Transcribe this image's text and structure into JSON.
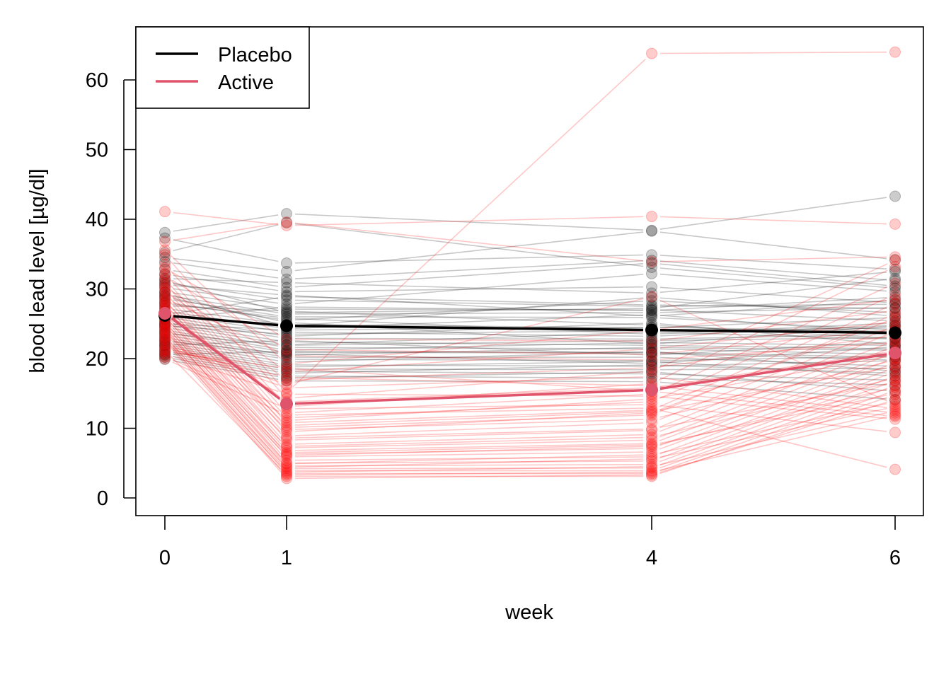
{
  "chart_data": {
    "type": "line",
    "title": "",
    "xlabel": "week",
    "ylabel": "blood lead level [µg/dl]",
    "x": [
      0,
      1,
      4,
      6
    ],
    "x_tick_labels": [
      "0",
      "1",
      "4",
      "6"
    ],
    "y_ticks": [
      0,
      10,
      20,
      30,
      40,
      50,
      60
    ],
    "y_tick_labels": [
      "0",
      "10",
      "20",
      "30",
      "40",
      "50",
      "60"
    ],
    "xlim": [
      -0.25,
      6.25
    ],
    "ylim": [
      -2.5,
      67.5
    ],
    "grid": false,
    "legend": {
      "position": "top-left",
      "entries": [
        {
          "label": "Placebo",
          "color": "#000000"
        },
        {
          "label": "Active",
          "color": "#DF536B"
        }
      ]
    },
    "colors": {
      "placebo_individual": "#000000",
      "active_individual": "#FF0000",
      "placebo_mean": "#000000",
      "active_mean": "#DF536B"
    },
    "series": [
      {
        "name": "Placebo",
        "role": "mean",
        "values": [
          26.2,
          24.7,
          24.1,
          23.7
        ]
      },
      {
        "name": "Active",
        "role": "mean",
        "values": [
          26.5,
          13.5,
          15.5,
          20.8
        ]
      }
    ],
    "individuals": {
      "Placebo": [
        [
          38.1,
          40.8,
          38.4,
          43.3
        ],
        [
          37.3,
          33.7,
          34.9,
          32.8
        ],
        [
          35.2,
          39.5,
          33.1,
          30.1
        ],
        [
          34.5,
          32.5,
          38.3,
          34.2
        ],
        [
          33.9,
          31.4,
          34.1,
          31.2
        ],
        [
          32.8,
          30.2,
          33.7,
          30.4
        ],
        [
          32.1,
          29.6,
          30.3,
          28.0
        ],
        [
          31.5,
          30.9,
          29.4,
          32.5
        ],
        [
          30.9,
          28.4,
          27.5,
          27.8
        ],
        [
          30.2,
          27.8,
          32.2,
          29.6
        ],
        [
          29.6,
          27.1,
          27.0,
          25.4
        ],
        [
          29.1,
          26.4,
          26.6,
          27.3
        ],
        [
          28.6,
          26.0,
          25.9,
          24.1
        ],
        [
          28.1,
          25.5,
          28.3,
          26.6
        ],
        [
          27.6,
          26.8,
          24.8,
          22.9
        ],
        [
          27.2,
          24.9,
          24.4,
          25.9
        ],
        [
          26.8,
          24.3,
          26.3,
          23.6
        ],
        [
          26.4,
          23.8,
          23.2,
          24.8
        ],
        [
          26.0,
          23.2,
          25.1,
          22.0
        ],
        [
          25.6,
          22.9,
          22.8,
          23.5
        ],
        [
          25.2,
          22.4,
          21.9,
          21.4
        ],
        [
          24.9,
          22.0,
          23.8,
          22.8
        ],
        [
          24.5,
          21.6,
          21.4,
          20.6
        ],
        [
          24.1,
          21.2,
          22.3,
          21.9
        ],
        [
          23.8,
          20.9,
          20.8,
          19.8
        ],
        [
          23.4,
          20.5,
          21.6,
          21.2
        ],
        [
          23.0,
          20.2,
          20.2,
          18.9
        ],
        [
          22.7,
          19.9,
          19.7,
          20.3
        ],
        [
          22.3,
          19.5,
          21.0,
          18.2
        ],
        [
          22.0,
          19.1,
          18.9,
          19.7
        ],
        [
          21.7,
          18.8,
          19.6,
          17.5
        ],
        [
          21.4,
          18.5,
          18.4,
          18.6
        ],
        [
          21.1,
          18.2,
          17.8,
          16.9
        ],
        [
          20.8,
          17.9,
          19.1,
          17.9
        ],
        [
          20.5,
          17.5,
          17.2,
          16.2
        ],
        [
          20.2,
          17.2,
          18.1,
          15.3
        ],
        [
          19.9,
          16.8,
          16.7,
          14.1
        ],
        [
          26.3,
          28.9,
          27.7,
          27.2
        ],
        [
          25.7,
          27.4,
          26.9,
          28.8
        ],
        [
          27.9,
          25.8,
          23.5,
          25.1
        ],
        [
          29.4,
          24.6,
          28.8,
          26.1
        ],
        [
          24.7,
          23.5,
          24.0,
          24.4
        ],
        [
          23.6,
          21.9,
          22.6,
          23.0
        ],
        [
          21.9,
          22.6,
          20.5,
          22.4
        ],
        [
          20.6,
          21.0,
          20.9,
          20.2
        ],
        [
          30.6,
          29.1,
          26.1,
          28.4
        ],
        [
          31.2,
          26.6,
          27.2,
          31.5
        ],
        [
          28.9,
          25.2,
          22.1,
          24.7
        ],
        [
          22.5,
          20.7,
          19.3,
          21.7
        ],
        [
          25.0,
          24.1,
          24.5,
          23.9
        ]
      ],
      "Active": [
        [
          41.1,
          39.1,
          40.4,
          39.3
        ],
        [
          36.8,
          39.6,
          33.9,
          34.6
        ],
        [
          34.9,
          15.1,
          63.8,
          64.0
        ],
        [
          33.5,
          14.3,
          18.2,
          34.1
        ],
        [
          32.2,
          13.1,
          16.4,
          33.2
        ],
        [
          31.4,
          12.2,
          14.9,
          30.8
        ],
        [
          30.8,
          11.5,
          13.8,
          29.2
        ],
        [
          30.1,
          10.8,
          12.6,
          27.9
        ],
        [
          29.5,
          10.1,
          11.9,
          26.4
        ],
        [
          29.0,
          9.5,
          12.2,
          25.8
        ],
        [
          28.4,
          8.9,
          10.8,
          24.7
        ],
        [
          27.9,
          8.3,
          9.7,
          23.9
        ],
        [
          27.4,
          7.7,
          9.1,
          22.6
        ],
        [
          26.9,
          7.2,
          8.3,
          21.8
        ],
        [
          26.5,
          6.8,
          7.8,
          20.9
        ],
        [
          26.1,
          6.3,
          7.1,
          20.1
        ],
        [
          25.7,
          5.9,
          6.6,
          19.4
        ],
        [
          25.3,
          5.4,
          5.9,
          18.7
        ],
        [
          24.9,
          5.0,
          5.3,
          18.1
        ],
        [
          24.5,
          4.6,
          4.8,
          17.5
        ],
        [
          24.1,
          4.2,
          4.3,
          16.8
        ],
        [
          23.7,
          3.9,
          3.9,
          16.1
        ],
        [
          23.3,
          3.5,
          3.5,
          15.4
        ],
        [
          22.9,
          3.1,
          3.1,
          14.8
        ],
        [
          22.5,
          2.8,
          3.3,
          14.1
        ],
        [
          22.1,
          16.3,
          28.9,
          13.4
        ],
        [
          21.8,
          15.8,
          17.4,
          12.8
        ],
        [
          21.4,
          17.3,
          16.1,
          12.2
        ],
        [
          21.0,
          18.6,
          15.3,
          11.7
        ],
        [
          20.7,
          14.9,
          14.6,
          11.3
        ],
        [
          20.3,
          12.8,
          13.4,
          9.4
        ],
        [
          20.0,
          11.9,
          12.9,
          4.1
        ],
        [
          28.7,
          20.4,
          19.8,
          22.3
        ],
        [
          31.9,
          21.3,
          20.6,
          24.2
        ],
        [
          33.0,
          22.8,
          22.5,
          26.9
        ],
        [
          27.1,
          9.8,
          11.3,
          19.8
        ],
        [
          25.1,
          7.4,
          8.7,
          17.2
        ],
        [
          23.9,
          6.1,
          7.4,
          15.9
        ],
        [
          26.7,
          13.8,
          15.8,
          21.1
        ],
        [
          29.8,
          16.9,
          18.7,
          23.3
        ],
        [
          24.3,
          4.9,
          6.2,
          13.8
        ],
        [
          22.7,
          3.7,
          4.5,
          12.5
        ],
        [
          30.4,
          18.1,
          21.4,
          25.3
        ],
        [
          35.6,
          19.2,
          24.1,
          28.5
        ],
        [
          28.2,
          11.1,
          14.2,
          20.5
        ],
        [
          27.6,
          10.4,
          12.4,
          18.9
        ],
        [
          25.9,
          8.6,
          9.9,
          16.6
        ],
        [
          24.7,
          6.5,
          7.6,
          15.0
        ],
        [
          23.1,
          4.4,
          5.6,
          13.1
        ],
        [
          21.2,
          3.3,
          3.7,
          11.9
        ]
      ]
    }
  }
}
